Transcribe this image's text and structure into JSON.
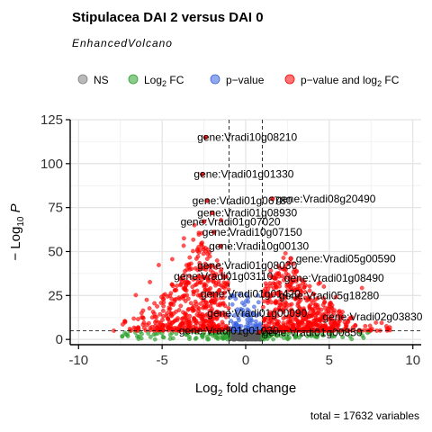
{
  "chart_data": {
    "type": "scatter",
    "title": "Stipulacea DAI 2 versus DAI 0",
    "subtitle": "EnhancedVolcano",
    "xlabel": "fold change",
    "xlabel_prefix": "Log",
    "xlabel_sub": "2",
    "ylabel": "P",
    "ylabel_prefix": "− Log",
    "ylabel_sub": "10",
    "caption": "total = 17632 variables",
    "xlim": [
      -10.5,
      10.5
    ],
    "ylim": [
      -3,
      125
    ],
    "xticks": [
      -10,
      -5,
      0,
      5,
      10
    ],
    "yticks": [
      0,
      25,
      50,
      75,
      100,
      125
    ],
    "fc_cutoff": 1,
    "p_cutoff": 5,
    "grid": true,
    "legend": {
      "position": "top",
      "items": [
        {
          "key": "ns",
          "label": "NS",
          "color": "#7f7f7f"
        },
        {
          "key": "fc",
          "label": "Log",
          "sub": "2",
          "suffix": " FC",
          "color": "#2ca02c"
        },
        {
          "key": "p",
          "label": "p−value",
          "color": "#3b62e0"
        },
        {
          "key": "both",
          "label": "p−value and log",
          "sub": "2",
          "suffix": " FC",
          "color": "#ff0000"
        }
      ]
    },
    "point_colors": {
      "ns": "#5a5a5a",
      "fc": "#2ca02c",
      "p": "#3b62e0",
      "both": "#ff0000"
    },
    "labels": [
      {
        "text": "gene:Vradi10g08210",
        "x": -2.9,
        "y": 115
      },
      {
        "text": "gene:Vradi01g01330",
        "x": -3.1,
        "y": 94
      },
      {
        "text": "gene:Vradi01g06780",
        "x": -3.2,
        "y": 79
      },
      {
        "text": "gene:Vradi08g20490",
        "x": 1.8,
        "y": 80
      },
      {
        "text": "gene:Vradi01g08930",
        "x": -2.9,
        "y": 72
      },
      {
        "text": "gene:Vradi01g07020",
        "x": -3.9,
        "y": 67
      },
      {
        "text": "gene:Vradi10g07150",
        "x": -2.6,
        "y": 61
      },
      {
        "text": "gene:Vradi10g00130",
        "x": -2.2,
        "y": 53
      },
      {
        "text": "gene:Vradi05g00590",
        "x": 3.0,
        "y": 46
      },
      {
        "text": "gene:Vradi01g08030",
        "x": -2.9,
        "y": 42
      },
      {
        "text": "gene:Vradi01g03110",
        "x": -4.3,
        "y": 36
      },
      {
        "text": "gene:Vradi01g08490",
        "x": 2.3,
        "y": 35
      },
      {
        "text": "gene:Vradi01g01420",
        "x": -2.7,
        "y": 26
      },
      {
        "text": "gene:Vradi05g18280",
        "x": 2.0,
        "y": 25
      },
      {
        "text": "gene:Vradi01g00090",
        "x": -2.3,
        "y": 15
      },
      {
        "text": "gene:Vradi02g03830",
        "x": 4.6,
        "y": 13
      },
      {
        "text": "gene:Vradi01g01030",
        "x": -4.0,
        "y": 5
      },
      {
        "text": "gene:Vradi01g00850",
        "x": 1.0,
        "y": 4
      }
    ],
    "highlight_points": [
      {
        "x": -2.4,
        "y": 115
      },
      {
        "x": -2.6,
        "y": 94
      },
      {
        "x": -2.3,
        "y": 79
      },
      {
        "x": 1.6,
        "y": 80
      },
      {
        "x": -2.0,
        "y": 72
      },
      {
        "x": -2.5,
        "y": 67
      },
      {
        "x": -1.9,
        "y": 61
      },
      {
        "x": -1.5,
        "y": 53
      },
      {
        "x": 2.7,
        "y": 46
      },
      {
        "x": -2.1,
        "y": 42
      },
      {
        "x": -2.8,
        "y": 36
      },
      {
        "x": 1.7,
        "y": 35
      },
      {
        "x": -2.0,
        "y": 26
      },
      {
        "x": 1.5,
        "y": 25
      },
      {
        "x": -1.6,
        "y": 15
      },
      {
        "x": 3.8,
        "y": 13
      },
      {
        "x": -3.5,
        "y": 5
      },
      {
        "x": 0.8,
        "y": 4
      }
    ],
    "bulk": {
      "ns_count": 260,
      "fc_count": 160,
      "p_count": 90,
      "both_left_count": 520,
      "both_right_count": 560
    }
  }
}
